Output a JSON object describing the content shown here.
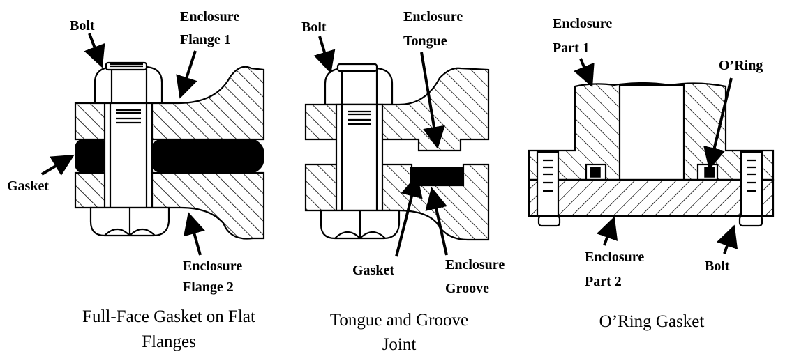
{
  "panels": [
    {
      "caption_line1": "Full-Face Gasket on Flat",
      "caption_line2": "Flanges",
      "labels": {
        "bolt": "Bolt",
        "flange1_line1": "Enclosure",
        "flange1_line2": "Flange 1",
        "gasket": "Gasket",
        "flange2_line1": "Enclosure",
        "flange2_line2": "Flange 2"
      }
    },
    {
      "caption_line1": "Tongue and Groove",
      "caption_line2": "Joint",
      "labels": {
        "bolt": "Bolt",
        "tongue_line1": "Enclosure",
        "tongue_line2": "Tongue",
        "gasket": "Gasket",
        "groove_line1": "Enclosure",
        "groove_line2": "Groove"
      }
    },
    {
      "caption_line1": "O’Ring Gasket",
      "labels": {
        "part1_line1": "Enclosure",
        "part1_line2": "Part 1",
        "oring": "O’Ring",
        "part2_line1": "Enclosure",
        "part2_line2": "Part 2",
        "bolt": "Bolt"
      }
    }
  ]
}
